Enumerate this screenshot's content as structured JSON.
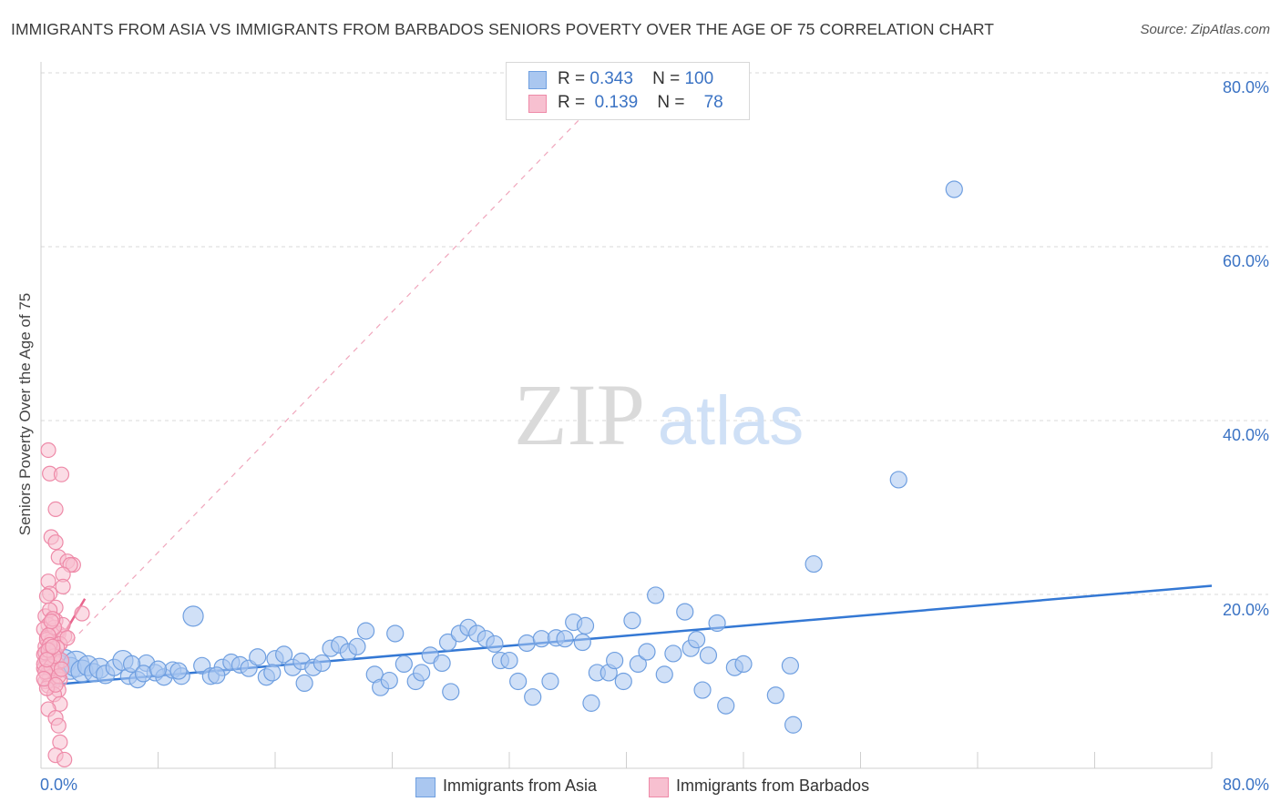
{
  "header": {
    "title": "IMMIGRANTS FROM ASIA VS IMMIGRANTS FROM BARBADOS SENIORS POVERTY OVER THE AGE OF 75 CORRELATION CHART",
    "source": "Source: ZipAtlas.com"
  },
  "watermark": {
    "zip": "ZIP",
    "atlas": "atlas"
  },
  "legend_top": {
    "rows": [
      {
        "r_label": "R =",
        "r_value": "0.343",
        "n_label": "N =",
        "n_value": "100",
        "color": "#aac7f0",
        "border": "#6f9fe0"
      },
      {
        "r_label": "R =",
        "r_value": "0.139",
        "n_label": "N =",
        "n_value": "78",
        "color": "#f7c0d0",
        "border": "#ee8aa8"
      }
    ]
  },
  "legend_bottom": {
    "items": [
      {
        "label": "Immigrants from Asia",
        "color": "#aac7f0",
        "border": "#6f9fe0"
      },
      {
        "label": "Immigrants from Barbados",
        "color": "#f7c0d0",
        "border": "#ee8aa8"
      }
    ]
  },
  "axes": {
    "y_ticks": [
      "80.0%",
      "60.0%",
      "40.0%",
      "20.0%"
    ],
    "x_tick_left": "0.0%",
    "x_tick_right": "80.0%",
    "ylabel": "Seniors Poverty Over the Age of 75"
  },
  "chart_data": {
    "type": "scatter",
    "title": "IMMIGRANTS FROM ASIA VS IMMIGRANTS FROM BARBADOS SENIORS POVERTY OVER THE AGE OF 75 CORRELATION CHART",
    "xlabel": "",
    "ylabel": "Seniors Poverty Over the Age of 75",
    "xlim": [
      0,
      80
    ],
    "ylim": [
      0,
      80
    ],
    "grid": true,
    "legend_position": "bottom",
    "series": [
      {
        "name": "Immigrants from Asia",
        "color": "#6f9fe0",
        "fill": "#aac7f0",
        "r": 0.343,
        "n": 100,
        "trend": {
          "x": [
            0,
            80
          ],
          "y": [
            9.5,
            21.0
          ]
        },
        "points": [
          [
            0.8,
            12.5,
            14
          ],
          [
            1.2,
            11.8,
            12
          ],
          [
            1.6,
            12.3,
            13
          ],
          [
            2.0,
            11.5,
            12
          ],
          [
            2.4,
            12.0,
            14
          ],
          [
            2.8,
            11.2,
            12
          ],
          [
            3.2,
            11.8,
            11
          ],
          [
            3.6,
            11.0,
            10
          ],
          [
            4.0,
            11.5,
            11
          ],
          [
            4.4,
            10.8,
            10
          ],
          [
            5.0,
            11.6,
            9
          ],
          [
            5.6,
            12.4,
            11
          ],
          [
            6.0,
            10.6,
            9
          ],
          [
            6.6,
            10.2,
            9
          ],
          [
            7.2,
            12.1,
            9
          ],
          [
            7.8,
            11.0,
            9
          ],
          [
            8.4,
            10.5,
            9
          ],
          [
            9.0,
            11.3,
            9
          ],
          [
            9.6,
            10.6,
            9
          ],
          [
            10.4,
            17.5,
            11
          ],
          [
            11.0,
            11.8,
            9
          ],
          [
            11.6,
            10.6,
            9
          ],
          [
            12.4,
            11.6,
            9
          ],
          [
            13.0,
            12.2,
            9
          ],
          [
            13.6,
            11.9,
            9
          ],
          [
            14.2,
            11.5,
            9
          ],
          [
            14.8,
            12.8,
            9
          ],
          [
            15.4,
            10.5,
            9
          ],
          [
            16.0,
            12.6,
            9
          ],
          [
            16.6,
            13.1,
            9
          ],
          [
            17.2,
            11.6,
            9
          ],
          [
            17.8,
            12.3,
            9
          ],
          [
            18.0,
            9.8,
            9
          ],
          [
            18.6,
            11.6,
            9
          ],
          [
            19.2,
            12.1,
            9
          ],
          [
            19.8,
            13.8,
            9
          ],
          [
            20.4,
            14.2,
            9
          ],
          [
            21.0,
            13.4,
            9
          ],
          [
            21.6,
            14.0,
            9
          ],
          [
            22.2,
            15.8,
            9
          ],
          [
            22.8,
            10.8,
            9
          ],
          [
            23.2,
            9.3,
            9
          ],
          [
            23.8,
            10.1,
            9
          ],
          [
            24.2,
            15.5,
            9
          ],
          [
            24.8,
            12.0,
            9
          ],
          [
            25.6,
            10.0,
            9
          ],
          [
            26.0,
            11.0,
            9
          ],
          [
            26.6,
            13.0,
            9
          ],
          [
            27.4,
            12.1,
            9
          ],
          [
            27.8,
            14.5,
            9
          ],
          [
            28.0,
            8.8,
            9
          ],
          [
            28.6,
            15.5,
            9
          ],
          [
            29.2,
            16.2,
            9
          ],
          [
            29.8,
            15.5,
            9
          ],
          [
            30.4,
            14.9,
            9
          ],
          [
            31.0,
            14.3,
            9
          ],
          [
            31.4,
            12.4,
            9
          ],
          [
            32.0,
            12.4,
            9
          ],
          [
            32.6,
            10.0,
            9
          ],
          [
            33.2,
            14.4,
            9
          ],
          [
            33.6,
            8.2,
            9
          ],
          [
            34.2,
            14.9,
            9
          ],
          [
            34.8,
            10.0,
            9
          ],
          [
            35.2,
            15.0,
            9
          ],
          [
            35.8,
            14.9,
            9
          ],
          [
            36.4,
            16.8,
            9
          ],
          [
            37.0,
            14.5,
            9
          ],
          [
            37.2,
            16.4,
            9
          ],
          [
            37.6,
            7.5,
            9
          ],
          [
            38.0,
            11.0,
            9
          ],
          [
            38.8,
            11.0,
            9
          ],
          [
            39.2,
            12.4,
            9
          ],
          [
            39.8,
            10.0,
            9
          ],
          [
            40.4,
            17.0,
            9
          ],
          [
            40.8,
            12.0,
            9
          ],
          [
            41.4,
            13.4,
            9
          ],
          [
            42.0,
            19.9,
            9
          ],
          [
            42.6,
            10.8,
            9
          ],
          [
            43.2,
            13.2,
            9
          ],
          [
            44.0,
            18.0,
            9
          ],
          [
            44.4,
            13.8,
            9
          ],
          [
            44.8,
            14.8,
            9
          ],
          [
            45.2,
            9.0,
            9
          ],
          [
            45.6,
            13.0,
            9
          ],
          [
            46.2,
            16.7,
            9
          ],
          [
            46.8,
            7.2,
            9
          ],
          [
            47.4,
            11.6,
            9
          ],
          [
            48.0,
            12.0,
            9
          ],
          [
            50.2,
            8.4,
            9
          ],
          [
            51.2,
            11.8,
            9
          ],
          [
            51.4,
            5.0,
            9
          ],
          [
            52.8,
            23.5,
            9
          ],
          [
            58.6,
            33.2,
            9
          ],
          [
            62.4,
            66.6,
            9
          ],
          [
            6.2,
            12.0,
            9
          ],
          [
            7.0,
            10.9,
            9
          ],
          [
            8.0,
            11.4,
            9
          ],
          [
            9.4,
            11.2,
            9
          ],
          [
            12.0,
            10.7,
            9
          ],
          [
            15.8,
            11.0,
            9
          ]
        ]
      },
      {
        "name": "Immigrants from Barbados",
        "color": "#ee8aa8",
        "fill": "#f7c0d0",
        "r": 0.139,
        "n": 78,
        "trend": {
          "x": [
            0,
            3.0
          ],
          "y": [
            11.0,
            19.5
          ]
        },
        "trend_extended": {
          "x": [
            0,
            37.0
          ],
          "y": [
            11.0,
            75.0
          ]
        },
        "points": [
          [
            0.5,
            36.6,
            8
          ],
          [
            0.6,
            33.9,
            8
          ],
          [
            1.4,
            33.8,
            8
          ],
          [
            1.0,
            29.8,
            8
          ],
          [
            0.7,
            26.6,
            8
          ],
          [
            1.0,
            26.0,
            8
          ],
          [
            1.2,
            24.3,
            8
          ],
          [
            1.8,
            23.8,
            8
          ],
          [
            2.2,
            23.4,
            8
          ],
          [
            2.0,
            23.4,
            8
          ],
          [
            1.5,
            22.3,
            8
          ],
          [
            0.5,
            21.5,
            8
          ],
          [
            1.5,
            20.9,
            8
          ],
          [
            0.6,
            20.1,
            8
          ],
          [
            0.4,
            19.8,
            8
          ],
          [
            1.0,
            18.5,
            8
          ],
          [
            2.8,
            17.8,
            8
          ],
          [
            0.3,
            17.5,
            8
          ],
          [
            1.0,
            17.0,
            8
          ],
          [
            0.5,
            16.5,
            8
          ],
          [
            0.2,
            16.0,
            8
          ],
          [
            0.8,
            15.8,
            8
          ],
          [
            1.2,
            15.5,
            8
          ],
          [
            1.6,
            15.2,
            8
          ],
          [
            0.4,
            15.0,
            8
          ],
          [
            0.7,
            14.6,
            8
          ],
          [
            1.3,
            14.3,
            8
          ],
          [
            0.3,
            14.0,
            8
          ],
          [
            0.6,
            13.7,
            8
          ],
          [
            0.9,
            13.4,
            8
          ],
          [
            0.2,
            13.1,
            8
          ],
          [
            0.5,
            12.8,
            8
          ],
          [
            0.8,
            12.6,
            8
          ],
          [
            0.3,
            12.3,
            8
          ],
          [
            1.1,
            12.0,
            8
          ],
          [
            0.5,
            11.8,
            8
          ],
          [
            0.2,
            11.5,
            8
          ],
          [
            0.7,
            11.3,
            8
          ],
          [
            1.0,
            11.0,
            8
          ],
          [
            0.4,
            10.8,
            8
          ],
          [
            0.6,
            10.5,
            8
          ],
          [
            1.3,
            10.2,
            8
          ],
          [
            0.3,
            10.0,
            8
          ],
          [
            0.8,
            9.8,
            8
          ],
          [
            0.5,
            9.5,
            8
          ],
          [
            1.2,
            9.0,
            8
          ],
          [
            0.9,
            8.5,
            8
          ],
          [
            1.3,
            7.4,
            8
          ],
          [
            0.5,
            6.8,
            8
          ],
          [
            1.0,
            5.8,
            8
          ],
          [
            1.2,
            4.9,
            8
          ],
          [
            1.3,
            3.0,
            8
          ],
          [
            1.0,
            1.5,
            8
          ],
          [
            1.6,
            1.0,
            8
          ],
          [
            0.4,
            14.8,
            8
          ],
          [
            0.2,
            12.0,
            8
          ],
          [
            1.5,
            16.5,
            8
          ],
          [
            0.9,
            16.2,
            8
          ],
          [
            0.6,
            18.2,
            8
          ],
          [
            1.8,
            15.0,
            8
          ],
          [
            0.3,
            13.3,
            8
          ],
          [
            1.4,
            12.4,
            8
          ],
          [
            0.7,
            11.7,
            8
          ],
          [
            0.4,
            9.2,
            8
          ],
          [
            1.1,
            13.9,
            8
          ],
          [
            0.5,
            15.3,
            8
          ],
          [
            0.8,
            17.2,
            8
          ],
          [
            0.3,
            11.1,
            8
          ],
          [
            1.2,
            10.6,
            8
          ],
          [
            0.6,
            14.2,
            8
          ],
          [
            0.9,
            12.9,
            8
          ],
          [
            0.2,
            10.3,
            8
          ],
          [
            1.4,
            11.4,
            8
          ],
          [
            0.5,
            13.6,
            8
          ],
          [
            0.7,
            16.9,
            8
          ],
          [
            1.0,
            9.6,
            8
          ],
          [
            0.4,
            12.5,
            8
          ],
          [
            0.8,
            14.0,
            8
          ]
        ]
      }
    ]
  }
}
